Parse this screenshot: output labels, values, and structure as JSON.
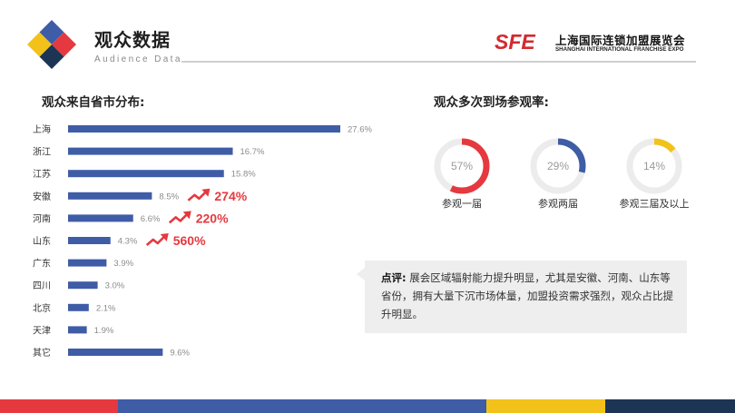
{
  "header": {
    "title": "观众数据",
    "subtitle": "Audience Data",
    "brand_mark": "SFE",
    "brand_cn": "上海国际连锁加盟展览会",
    "brand_en": "SHANGHAI INTERNATIONAL FRANCHISE EXPO"
  },
  "colors": {
    "bar": "#3f5ca6",
    "accent_red": "#e5393f",
    "accent_blue": "#3f5ca6",
    "accent_yellow": "#f2c21b",
    "navy": "#1c3554",
    "track": "#ececec"
  },
  "distribution_title": "观众来自省市分布:",
  "revisit_title": "观众多次到场参观率:",
  "chart_data": [
    {
      "type": "bar",
      "orientation": "horizontal",
      "title": "观众来自省市分布:",
      "categories": [
        "上海",
        "浙江",
        "江苏",
        "安徽",
        "河南",
        "山东",
        "广东",
        "四川",
        "北京",
        "天津",
        "其它"
      ],
      "values": [
        27.6,
        16.7,
        15.8,
        8.5,
        6.6,
        4.3,
        3.9,
        3.0,
        2.1,
        1.9,
        9.6
      ],
      "value_labels": [
        "27.6%",
        "16.7%",
        "15.8%",
        "8.5%",
        "6.6%",
        "4.3%",
        "3.9%",
        "3.0%",
        "2.1%",
        "1.9%",
        "9.6%"
      ],
      "unit": "%",
      "xlim": [
        0,
        27.6
      ],
      "grid": false,
      "annotations": [
        {
          "category": "安徽",
          "text": "274%",
          "icon": "trend-up-icon"
        },
        {
          "category": "河南",
          "text": "220%",
          "icon": "trend-up-icon"
        },
        {
          "category": "山东",
          "text": "560%",
          "icon": "trend-up-icon"
        }
      ]
    },
    {
      "type": "pie",
      "style": "donut",
      "title": "观众多次到场参观率:",
      "series": [
        {
          "label": "参观一届",
          "value": 57,
          "value_label": "57%",
          "color": "#e5393f"
        },
        {
          "label": "参观两届",
          "value": 29,
          "value_label": "29%",
          "color": "#3f5ca6"
        },
        {
          "label": "参观三届及以上",
          "value": 14,
          "value_label": "14%",
          "color": "#f2c21b"
        }
      ]
    }
  ],
  "comment": {
    "key": "点评:",
    "text": "展会区域辐射能力提升明显，尤其是安徽、河南、山东等省份，拥有大量下沉市场体量，加盟投资需求强烈，观众占比提升明显。"
  }
}
